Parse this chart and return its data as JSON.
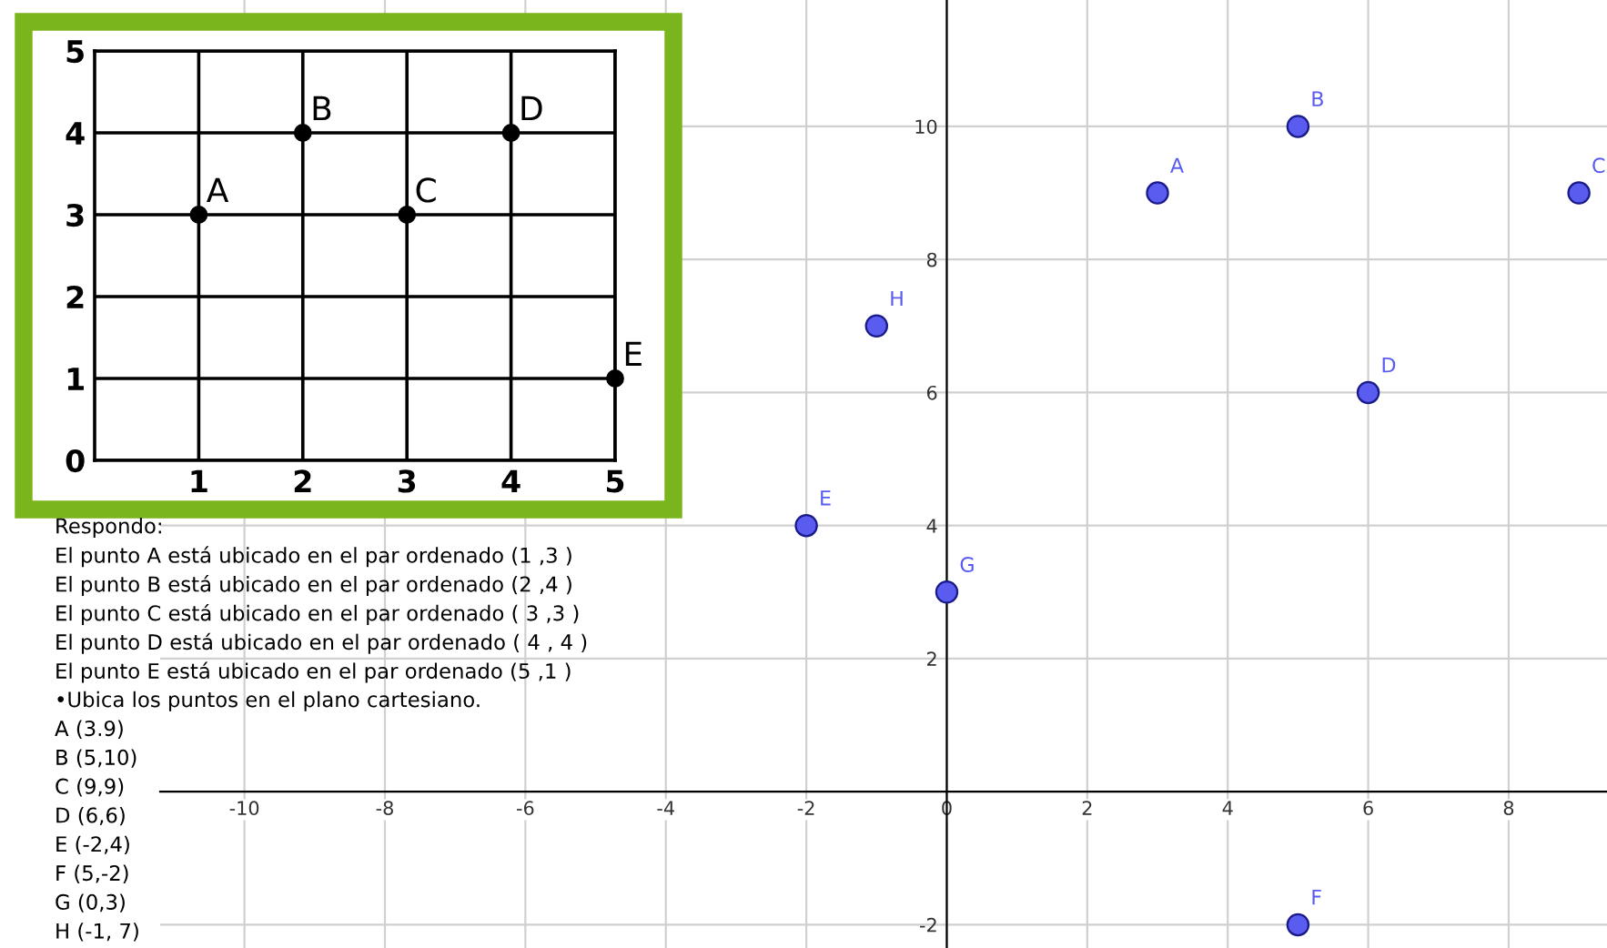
{
  "chart_data": [
    {
      "type": "scatter",
      "x": [
        3,
        5,
        9,
        6,
        -2,
        5,
        0,
        -1
      ],
      "values": [
        9,
        10,
        9,
        6,
        4,
        -2,
        3,
        7
      ],
      "color": "#5a5cf0",
      "marker": "circle",
      "xlim": [
        -11.2,
        9.4
      ],
      "ylim": [
        -2.35,
        11.9
      ],
      "xticks": [
        -10,
        -8,
        -6,
        -4,
        -2,
        0,
        2,
        4,
        6,
        8
      ],
      "yticks": [
        -2,
        2,
        4,
        6,
        8,
        10
      ],
      "grid": true,
      "annotations": [
        {
          "text": "A",
          "x": 3,
          "y": 9
        },
        {
          "text": "B",
          "x": 5,
          "y": 10
        },
        {
          "text": "C",
          "x": 9,
          "y": 9
        },
        {
          "text": "D",
          "x": 6,
          "y": 6
        },
        {
          "text": "E",
          "x": -2,
          "y": 4
        },
        {
          "text": "F",
          "x": 5,
          "y": -2
        },
        {
          "text": "G",
          "x": 0,
          "y": 3
        },
        {
          "text": "H",
          "x": -1,
          "y": 7
        },
        "Respondo:",
        "El punto A está ubicado en el par ordenado (1 ,3 )",
        "El punto B está ubicado en el par ordenado (2 ,4 )",
        "El punto C está ubicado en el par ordenado ( 3 ,3 )",
        "El punto D está ubicado en el par ordenado ( 4 , 4 )",
        "El punto E está ubicado en el par ordenado (5 ,1 )",
        "•Ubica los puntos en el plano cartesiano.",
        "A (3.9)",
        "B (5,10)",
        "C (9,9)",
        "D (6,6)",
        "E (-2,4)",
        "F (5,-2)",
        "G (0,3)",
        "H (-1, 7)"
      ]
    },
    {
      "type": "scatter",
      "x": [
        1,
        2,
        3,
        4,
        5
      ],
      "values": [
        3,
        4,
        3,
        4,
        1
      ],
      "color": "#000000",
      "marker": "circle",
      "xlim": [
        0,
        5
      ],
      "ylim": [
        0,
        5
      ],
      "xticks": [
        1,
        2,
        3,
        4,
        5
      ],
      "yticks": [
        0,
        1,
        2,
        3,
        4,
        5
      ],
      "grid": true,
      "annotations": [
        {
          "text": "A",
          "x": 1,
          "y": 3
        },
        {
          "text": "B",
          "x": 2,
          "y": 4
        },
        {
          "text": "C",
          "x": 3,
          "y": 3
        },
        {
          "text": "D",
          "x": 4,
          "y": 4
        },
        {
          "text": "E",
          "x": 5,
          "y": 1
        }
      ]
    }
  ]
}
